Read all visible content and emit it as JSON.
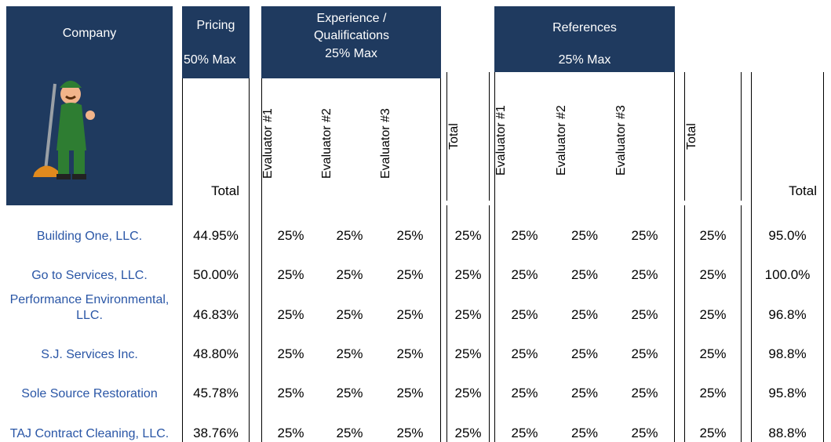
{
  "header": {
    "company": "Company",
    "pricing": {
      "title": "Pricing",
      "max": "50% Max",
      "total": "Total"
    },
    "experience": {
      "title": "Experience / Qualifications",
      "max": "25% Max",
      "evaluators": [
        "Evaluator #1",
        "Evaluator #2",
        "Evaluator #3"
      ],
      "total": "Total"
    },
    "references": {
      "title": "References",
      "max": "25% Max",
      "evaluators": [
        "Evaluator #1",
        "Evaluator #2",
        "Evaluator #3"
      ],
      "total": "Total"
    },
    "grand_total": "Total"
  },
  "rows": [
    [
      "Building One, LLC.",
      "44.95%",
      "25%",
      "25%",
      "25%",
      "25%",
      "25%",
      "25%",
      "25%",
      "25%",
      "95.0%"
    ],
    [
      "Go to Services, LLC.",
      "50.00%",
      "25%",
      "25%",
      "25%",
      "25%",
      "25%",
      "25%",
      "25%",
      "25%",
      "100.0%"
    ],
    [
      "Performance Environmental, LLC.",
      "46.83%",
      "25%",
      "25%",
      "25%",
      "25%",
      "25%",
      "25%",
      "25%",
      "25%",
      "96.8%"
    ],
    [
      "S.J. Services Inc.",
      "48.80%",
      "25%",
      "25%",
      "25%",
      "25%",
      "25%",
      "25%",
      "25%",
      "25%",
      "98.8%"
    ],
    [
      "Sole Source Restoration",
      "45.78%",
      "25%",
      "25%",
      "25%",
      "25%",
      "25%",
      "25%",
      "25%",
      "25%",
      "95.8%"
    ],
    [
      "TAJ Contract Cleaning, LLC.",
      "38.76%",
      "25%",
      "25%",
      "25%",
      "25%",
      "25%",
      "25%",
      "25%",
      "25%",
      "88.8%"
    ]
  ]
}
